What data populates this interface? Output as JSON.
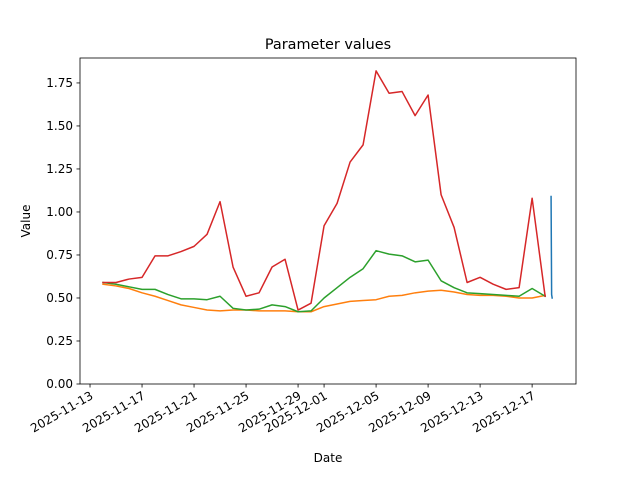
{
  "chart_data": {
    "type": "line",
    "title": "Parameter values",
    "x_label": "Date",
    "y_label": "Value",
    "series": [
      {
        "color": "#1f77b4",
        "x": [
          "2025-12-18T11:00",
          "2025-12-18T11:30",
          "2025-12-18T12:00",
          "2025-12-18T13:00"
        ],
        "values": [
          1.09,
          0.8,
          0.52,
          0.5
        ]
      },
      {
        "color": "#ff7f0e",
        "x": [
          "2025-11-14",
          "2025-11-15",
          "2025-11-16",
          "2025-11-17",
          "2025-11-18",
          "2025-11-19",
          "2025-11-20",
          "2025-11-21",
          "2025-11-22",
          "2025-11-23",
          "2025-11-24",
          "2025-11-25",
          "2025-11-26",
          "2025-11-27",
          "2025-11-28",
          "2025-11-29",
          "2025-11-30",
          "2025-12-01",
          "2025-12-02",
          "2025-12-03",
          "2025-12-04",
          "2025-12-05",
          "2025-12-06",
          "2025-12-07",
          "2025-12-08",
          "2025-12-09",
          "2025-12-10",
          "2025-12-11",
          "2025-12-12",
          "2025-12-13",
          "2025-12-14",
          "2025-12-15",
          "2025-12-16",
          "2025-12-17",
          "2025-12-18"
        ],
        "values": [
          0.58,
          0.57,
          0.555,
          0.53,
          0.51,
          0.485,
          0.46,
          0.445,
          0.43,
          0.425,
          0.43,
          0.43,
          0.425,
          0.425,
          0.425,
          0.42,
          0.42,
          0.45,
          0.465,
          0.48,
          0.485,
          0.49,
          0.51,
          0.515,
          0.53,
          0.54,
          0.545,
          0.535,
          0.52,
          0.515,
          0.515,
          0.51,
          0.5,
          0.5,
          0.515
        ]
      },
      {
        "color": "#2ca02c",
        "x": [
          "2025-11-14",
          "2025-11-15",
          "2025-11-16",
          "2025-11-17",
          "2025-11-18",
          "2025-11-19",
          "2025-11-20",
          "2025-11-21",
          "2025-11-22",
          "2025-11-23",
          "2025-11-24",
          "2025-11-25",
          "2025-11-26",
          "2025-11-27",
          "2025-11-28",
          "2025-11-29",
          "2025-11-30",
          "2025-12-01",
          "2025-12-02",
          "2025-12-03",
          "2025-12-04",
          "2025-12-05",
          "2025-12-06",
          "2025-12-07",
          "2025-12-08",
          "2025-12-09",
          "2025-12-10",
          "2025-12-11",
          "2025-12-12",
          "2025-12-13",
          "2025-12-14",
          "2025-12-15",
          "2025-12-16",
          "2025-12-17",
          "2025-12-18"
        ],
        "values": [
          0.59,
          0.58,
          0.565,
          0.55,
          0.55,
          0.52,
          0.495,
          0.495,
          0.49,
          0.51,
          0.44,
          0.43,
          0.435,
          0.46,
          0.45,
          0.42,
          0.425,
          0.5,
          0.56,
          0.62,
          0.67,
          0.775,
          0.755,
          0.745,
          0.71,
          0.72,
          0.6,
          0.56,
          0.53,
          0.525,
          0.52,
          0.515,
          0.51,
          0.555,
          0.51
        ]
      },
      {
        "color": "#d62728",
        "x": [
          "2025-11-14",
          "2025-11-15",
          "2025-11-16",
          "2025-11-17",
          "2025-11-18",
          "2025-11-19",
          "2025-11-20",
          "2025-11-21",
          "2025-11-22",
          "2025-11-23",
          "2025-11-24",
          "2025-11-25",
          "2025-11-26",
          "2025-11-27",
          "2025-11-28",
          "2025-11-29",
          "2025-11-30",
          "2025-12-01",
          "2025-12-02",
          "2025-12-03",
          "2025-12-04",
          "2025-12-05",
          "2025-12-06",
          "2025-12-07",
          "2025-12-08",
          "2025-12-09",
          "2025-12-10",
          "2025-12-11",
          "2025-12-12",
          "2025-12-13",
          "2025-12-14",
          "2025-12-15",
          "2025-12-16",
          "2025-12-17",
          "2025-12-18"
        ],
        "values": [
          0.59,
          0.59,
          0.61,
          0.62,
          0.745,
          0.745,
          0.77,
          0.8,
          0.87,
          1.06,
          0.68,
          0.51,
          0.53,
          0.68,
          0.725,
          0.43,
          0.47,
          0.92,
          1.05,
          1.29,
          1.39,
          1.82,
          1.69,
          1.7,
          1.56,
          1.68,
          1.1,
          0.91,
          0.59,
          0.62,
          0.58,
          0.55,
          0.56,
          1.08,
          0.51
        ]
      }
    ],
    "xlim": [
      "2025-11-12T05:30",
      "2025-12-20T09:00"
    ],
    "xticks": [
      "2025-11-13",
      "2025-11-17",
      "2025-11-21",
      "2025-11-25",
      "2025-11-29",
      "2025-12-01",
      "2025-12-05",
      "2025-12-09",
      "2025-12-13",
      "2025-12-17"
    ],
    "ylim": [
      0,
      1.895
    ],
    "yticks": [
      {
        "value": 0,
        "label": "0.00"
      },
      {
        "value": 0.25,
        "label": "0.25"
      },
      {
        "value": 0.5,
        "label": "0.50"
      },
      {
        "value": 0.75,
        "label": "0.75"
      },
      {
        "value": 1,
        "label": "1.00"
      },
      {
        "value": 1.25,
        "label": "1.25"
      },
      {
        "value": 1.5,
        "label": "1.50"
      },
      {
        "value": 1.75,
        "label": "1.75"
      }
    ]
  }
}
